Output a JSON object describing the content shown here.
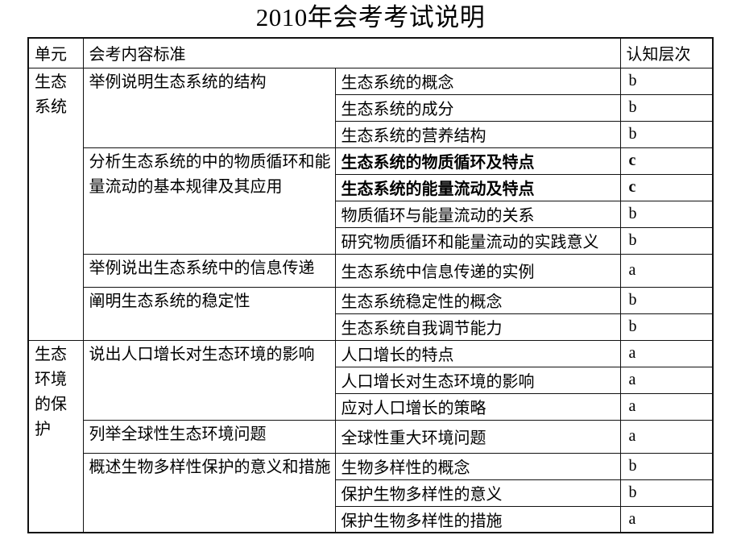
{
  "title": "2010年会考考试说明",
  "colors": {
    "background": "#ffffff",
    "text": "#000000",
    "border": "#111111"
  },
  "table": {
    "headers": {
      "unit": "单元",
      "content": "会考内容标准",
      "level": "认知层次"
    },
    "units": [
      {
        "name": "生态系统",
        "standards": [
          {
            "text": "举例说明生态系统的结构",
            "items": [
              {
                "topic": "生态系统的概念",
                "level": "b",
                "bold": false
              },
              {
                "topic": "生态系统的成分",
                "level": "b",
                "bold": false
              },
              {
                "topic": "生态系统的营养结构",
                "level": "b",
                "bold": false
              }
            ]
          },
          {
            "text": "分析生态系统的中的物质循环和能量流动的基本规律及其应用",
            "items": [
              {
                "topic": "生态系统的物质循环及特点",
                "level": "c",
                "bold": true
              },
              {
                "topic": "生态系统的能量流动及特点",
                "level": "c",
                "bold": true
              },
              {
                "topic": "物质循环与能量流动的关系",
                "level": "b",
                "bold": false
              },
              {
                "topic": "研究物质循环和能量流动的实践意义",
                "level": "b",
                "bold": false
              }
            ]
          },
          {
            "text": "举例说出生态系统中的信息传递",
            "items": [
              {
                "topic": "生态系统中信息传递的实例",
                "level": "a",
                "bold": false
              }
            ]
          },
          {
            "text": "阐明生态系统的稳定性",
            "items": [
              {
                "topic": "生态系统稳定性的概念",
                "level": "b",
                "bold": false
              },
              {
                "topic": "生态系统自我调节能力",
                "level": "b",
                "bold": false
              }
            ]
          }
        ]
      },
      {
        "name": "生态环境的保护",
        "standards": [
          {
            "text": "说出人口增长对生态环境的影响",
            "items": [
              {
                "topic": "人口增长的特点",
                "level": "a",
                "bold": false
              },
              {
                "topic": "人口增长对生态环境的影响",
                "level": "a",
                "bold": false
              },
              {
                "topic": "应对人口增长的策略",
                "level": "a",
                "bold": false
              }
            ]
          },
          {
            "text": "列举全球性生态环境问题",
            "items": [
              {
                "topic": "全球性重大环境问题",
                "level": "a",
                "bold": false
              }
            ]
          },
          {
            "text": "概述生物多样性保护的意义和措施",
            "items": [
              {
                "topic": "生物多样性的概念",
                "level": "b",
                "bold": false
              },
              {
                "topic": "保护生物多样性的意义",
                "level": "b",
                "bold": false
              },
              {
                "topic": "保护生物多样性的措施",
                "level": "a",
                "bold": false
              }
            ]
          }
        ]
      }
    ]
  }
}
